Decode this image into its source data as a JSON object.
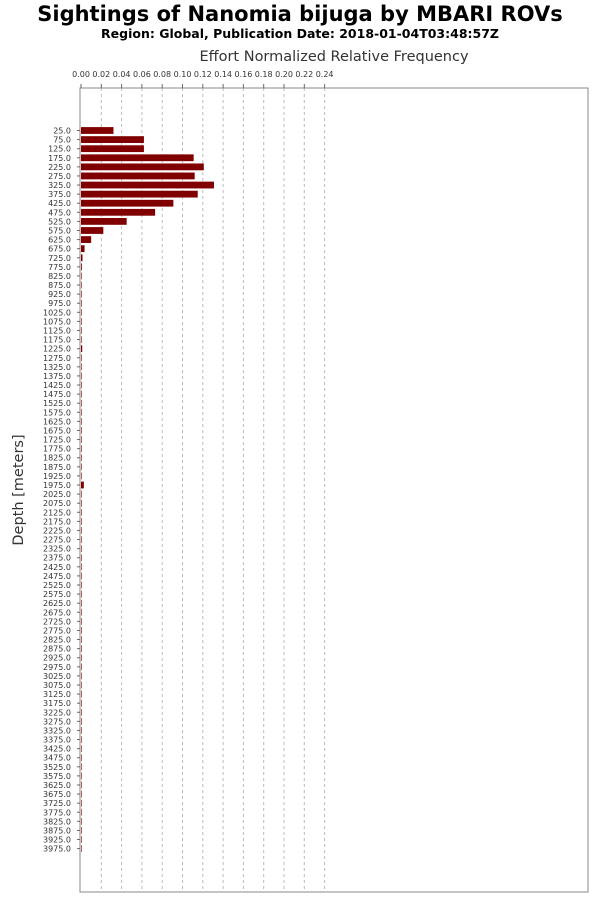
{
  "chart_data": {
    "type": "bar",
    "orientation": "horizontal",
    "title": "Sightings of Nanomia bijuga by MBARI ROVs",
    "subtitle": "Region: Global, Publication Date: 2018-01-04T03:48:57Z",
    "xlabel": "Effort Normalized Relative Frequency",
    "ylabel": "Depth [meters]",
    "xlim": [
      0,
      0.25
    ],
    "xticks": [
      "0.00",
      "0.02",
      "0.04",
      "0.06",
      "0.08",
      "0.10",
      "0.12",
      "0.14",
      "0.16",
      "0.18",
      "0.20",
      "0.22",
      "0.24"
    ],
    "grid": true,
    "bar_color": "#800000",
    "categories": [
      "25.0",
      "75.0",
      "125.0",
      "175.0",
      "225.0",
      "275.0",
      "325.0",
      "375.0",
      "425.0",
      "475.0",
      "525.0",
      "575.0",
      "625.0",
      "675.0",
      "725.0",
      "775.0",
      "825.0",
      "875.0",
      "925.0",
      "975.0",
      "1025.0",
      "1075.0",
      "1125.0",
      "1175.0",
      "1225.0",
      "1275.0",
      "1325.0",
      "1375.0",
      "1425.0",
      "1475.0",
      "1525.0",
      "1575.0",
      "1625.0",
      "1675.0",
      "1725.0",
      "1775.0",
      "1825.0",
      "1875.0",
      "1925.0",
      "1975.0",
      "2025.0",
      "2075.0",
      "2125.0",
      "2175.0",
      "2225.0",
      "2275.0",
      "2325.0",
      "2375.0",
      "2425.0",
      "2475.0",
      "2525.0",
      "2575.0",
      "2625.0",
      "2675.0",
      "2725.0",
      "2775.0",
      "2825.0",
      "2875.0",
      "2925.0",
      "2975.0",
      "3025.0",
      "3075.0",
      "3125.0",
      "3175.0",
      "3225.0",
      "3275.0",
      "3325.0",
      "3375.0",
      "3425.0",
      "3475.0",
      "3525.0",
      "3575.0",
      "3625.0",
      "3675.0",
      "3725.0",
      "3775.0",
      "3825.0",
      "3875.0",
      "3925.0",
      "3975.0"
    ],
    "values": [
      0.032,
      0.062,
      0.062,
      0.111,
      0.121,
      0.112,
      0.131,
      0.115,
      0.091,
      0.073,
      0.045,
      0.022,
      0.01,
      0.0035,
      0.0015,
      0.0008,
      0.0003,
      0.0003,
      0.0002,
      0.0002,
      0.0002,
      0.0001,
      0.0001,
      0.0001,
      0.0012,
      0.0001,
      0.0001,
      0.0001,
      0.0001,
      0.0001,
      0.0001,
      0.0001,
      0.0001,
      0.0001,
      0.0001,
      0.0001,
      0.0001,
      0.0001,
      0.0001,
      0.0028,
      0.0003,
      0.0001,
      0.0001,
      0.0001,
      0.0001,
      0.0001,
      0.0001,
      0.0001,
      0.0002,
      0.0001,
      0.0001,
      0.0001,
      0.0002,
      0.0001,
      0.0001,
      0.0001,
      0.0001,
      0.0001,
      0.0001,
      0.0006,
      0.0001,
      0.0001,
      0.0001,
      0.0001,
      0.0001,
      0.0001,
      0.0001,
      0.0001,
      0.0001,
      0.0001,
      0.0001,
      0.0001,
      0.0001,
      0.0001,
      0.0001,
      0.0001,
      0.0001,
      0.0001,
      0.0001,
      0.0001
    ]
  }
}
